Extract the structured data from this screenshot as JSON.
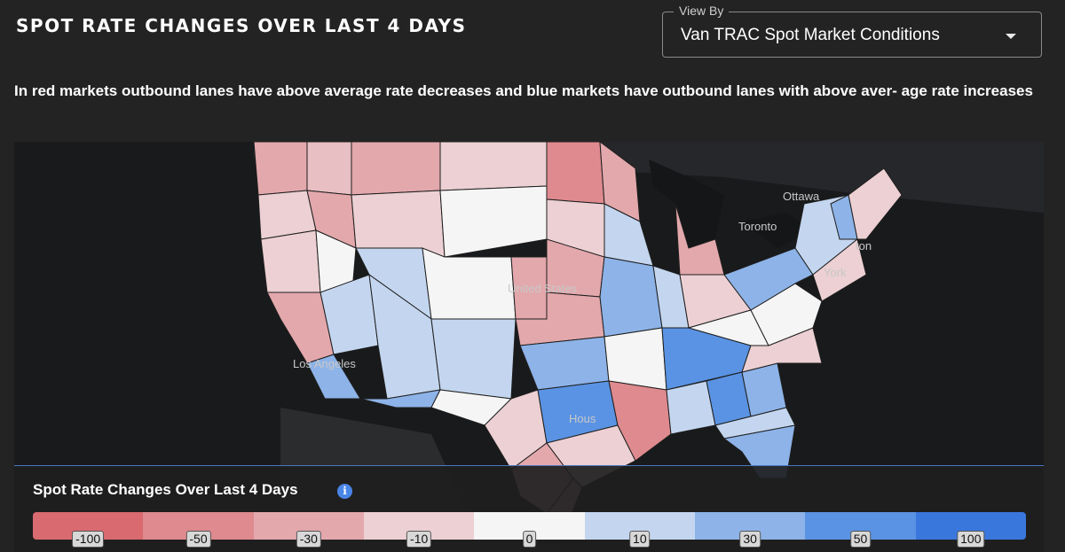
{
  "header": {
    "title": "SPOT RATE CHANGES OVER LAST 4 DAYS"
  },
  "view_by": {
    "legend": "View By",
    "selected": "Van TRAC Spot Market Conditions"
  },
  "description": "In red markets outbound lanes have above average rate decreases and blue markets have outbound lanes with above aver- age rate increases",
  "map": {
    "labels": {
      "ottawa": "Ottawa",
      "toronto": "Toronto",
      "boston": "ton",
      "new_york": "York",
      "united_states": "United States",
      "los_angeles": "Los Angeles",
      "houston": "Hous"
    }
  },
  "legend": {
    "title": "Spot Rate Changes Over Last 4 Days",
    "stops": [
      {
        "label": "-100",
        "color": "#d96a70"
      },
      {
        "label": "-50",
        "color": "#de8a8f"
      },
      {
        "label": "-30",
        "color": "#e3a8ac"
      },
      {
        "label": "-10",
        "color": "#ecd0d3"
      },
      {
        "label": "0",
        "color": "#f5f5f5"
      },
      {
        "label": "10",
        "color": "#c4d6ef"
      },
      {
        "label": "30",
        "color": "#8db3e8"
      },
      {
        "label": "50",
        "color": "#5a93e3"
      },
      {
        "label": "100",
        "color": "#3a77dd"
      }
    ]
  }
}
